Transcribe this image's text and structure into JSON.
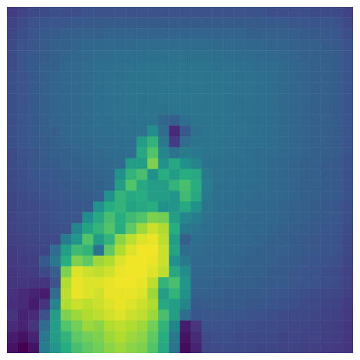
{
  "chart_data": {
    "type": "heatmap",
    "color": "viridis",
    "tick_labels": false,
    "grid": false,
    "xlim": [
      0,
      32
    ],
    "ylim": [
      0,
      32
    ],
    "zlim": [
      0,
      100
    ],
    "cells": [
      [
        18,
        20,
        22,
        23,
        24,
        24,
        24,
        25,
        25,
        25,
        25,
        25,
        25,
        25,
        25,
        25,
        25,
        25,
        25,
        25,
        25,
        25,
        25,
        25,
        24,
        24,
        24,
        24,
        23,
        23,
        22,
        20
      ],
      [
        20,
        23,
        25,
        26,
        27,
        27,
        28,
        28,
        28,
        29,
        29,
        29,
        29,
        29,
        29,
        29,
        29,
        29,
        29,
        29,
        29,
        29,
        29,
        28,
        28,
        28,
        27,
        27,
        26,
        26,
        25,
        22
      ],
      [
        21,
        24,
        26,
        28,
        29,
        30,
        30,
        31,
        31,
        32,
        32,
        32,
        32,
        32,
        32,
        32,
        32,
        32,
        32,
        32,
        32,
        32,
        31,
        31,
        30,
        30,
        30,
        29,
        28,
        28,
        27,
        24
      ],
      [
        22,
        25,
        27,
        29,
        30,
        31,
        32,
        33,
        33,
        34,
        34,
        34,
        35,
        35,
        35,
        35,
        35,
        35,
        35,
        34,
        34,
        34,
        33,
        33,
        32,
        32,
        31,
        30,
        30,
        29,
        28,
        25
      ],
      [
        23,
        26,
        28,
        29,
        31,
        32,
        33,
        34,
        35,
        35,
        36,
        36,
        36,
        37,
        37,
        37,
        37,
        37,
        37,
        36,
        36,
        35,
        35,
        34,
        34,
        33,
        32,
        31,
        31,
        30,
        29,
        26
      ],
      [
        23,
        26,
        28,
        30,
        31,
        33,
        34,
        35,
        36,
        36,
        37,
        37,
        38,
        38,
        38,
        38,
        38,
        38,
        38,
        37,
        37,
        37,
        36,
        35,
        35,
        34,
        33,
        32,
        31,
        30,
        29,
        26
      ],
      [
        24,
        26,
        28,
        30,
        32,
        33,
        34,
        35,
        36,
        37,
        37,
        38,
        38,
        38,
        39,
        39,
        39,
        39,
        38,
        38,
        38,
        37,
        37,
        36,
        35,
        34,
        33,
        32,
        31,
        30,
        29,
        26
      ],
      [
        24,
        26,
        28,
        30,
        32,
        33,
        34,
        35,
        36,
        37,
        37,
        38,
        38,
        38,
        39,
        39,
        39,
        39,
        38,
        38,
        38,
        37,
        37,
        36,
        35,
        34,
        33,
        32,
        31,
        30,
        29,
        26
      ],
      [
        24,
        26,
        28,
        30,
        32,
        33,
        34,
        35,
        36,
        37,
        37,
        38,
        38,
        38,
        39,
        39,
        39,
        39,
        38,
        38,
        38,
        37,
        37,
        36,
        35,
        34,
        33,
        32,
        31,
        30,
        29,
        26
      ],
      [
        24,
        26,
        28,
        30,
        32,
        33,
        34,
        35,
        36,
        37,
        37,
        38,
        38,
        38,
        38,
        39,
        39,
        39,
        38,
        38,
        38,
        37,
        37,
        36,
        35,
        34,
        33,
        32,
        31,
        30,
        29,
        26
      ],
      [
        24,
        26,
        28,
        30,
        32,
        33,
        34,
        35,
        36,
        36,
        37,
        37,
        38,
        38,
        33,
        30,
        36,
        38,
        38,
        38,
        38,
        37,
        37,
        36,
        35,
        34,
        33,
        32,
        31,
        30,
        29,
        26
      ],
      [
        24,
        26,
        28,
        30,
        31,
        33,
        34,
        35,
        35,
        36,
        36,
        37,
        37,
        48,
        35,
        12,
        28,
        37,
        38,
        38,
        38,
        37,
        37,
        36,
        35,
        34,
        33,
        32,
        31,
        30,
        29,
        26
      ],
      [
        24,
        26,
        28,
        29,
        31,
        32,
        33,
        34,
        35,
        35,
        36,
        36,
        55,
        65,
        40,
        18,
        35,
        38,
        38,
        38,
        37,
        37,
        36,
        36,
        35,
        34,
        33,
        32,
        31,
        30,
        29,
        26
      ],
      [
        23,
        25,
        27,
        29,
        30,
        31,
        32,
        33,
        34,
        35,
        35,
        36,
        60,
        72,
        45,
        38,
        42,
        40,
        38,
        38,
        37,
        37,
        36,
        35,
        35,
        34,
        33,
        32,
        31,
        30,
        29,
        26
      ],
      [
        23,
        25,
        27,
        28,
        29,
        30,
        31,
        32,
        33,
        34,
        35,
        55,
        55,
        80,
        50,
        60,
        50,
        45,
        38,
        37,
        37,
        36,
        36,
        35,
        34,
        33,
        32,
        31,
        30,
        29,
        28,
        25
      ],
      [
        22,
        24,
        26,
        27,
        28,
        29,
        30,
        31,
        32,
        33,
        50,
        65,
        70,
        50,
        62,
        55,
        62,
        60,
        40,
        37,
        37,
        36,
        36,
        35,
        34,
        33,
        32,
        31,
        30,
        29,
        28,
        25
      ],
      [
        22,
        24,
        25,
        26,
        27,
        28,
        29,
        30,
        31,
        33,
        55,
        72,
        60,
        55,
        55,
        65,
        70,
        62,
        42,
        37,
        36,
        36,
        35,
        35,
        34,
        33,
        32,
        31,
        30,
        29,
        28,
        25
      ],
      [
        21,
        23,
        24,
        25,
        26,
        27,
        28,
        29,
        30,
        50,
        65,
        60,
        62,
        55,
        55,
        52,
        68,
        60,
        40,
        36,
        36,
        35,
        35,
        34,
        34,
        33,
        32,
        31,
        30,
        29,
        28,
        25
      ],
      [
        21,
        22,
        23,
        24,
        25,
        26,
        27,
        28,
        50,
        62,
        65,
        58,
        60,
        62,
        50,
        52,
        60,
        50,
        38,
        36,
        35,
        35,
        34,
        34,
        33,
        32,
        31,
        30,
        29,
        28,
        27,
        24
      ],
      [
        20,
        22,
        23,
        24,
        25,
        26,
        27,
        48,
        60,
        70,
        62,
        68,
        72,
        80,
        78,
        55,
        45,
        42,
        37,
        35,
        35,
        34,
        34,
        33,
        33,
        32,
        31,
        30,
        29,
        28,
        27,
        24
      ],
      [
        20,
        21,
        22,
        23,
        24,
        25,
        45,
        58,
        65,
        72,
        62,
        75,
        85,
        92,
        88,
        62,
        40,
        38,
        36,
        35,
        34,
        34,
        33,
        33,
        32,
        31,
        30,
        29,
        28,
        27,
        26,
        23
      ],
      [
        19,
        20,
        21,
        22,
        23,
        42,
        52,
        72,
        55,
        65,
        82,
        90,
        95,
        97,
        90,
        55,
        30,
        36,
        35,
        34,
        34,
        33,
        33,
        32,
        31,
        30,
        29,
        28,
        27,
        26,
        25,
        22
      ],
      [
        18,
        19,
        20,
        21,
        35,
        55,
        68,
        65,
        38,
        75,
        88,
        95,
        98,
        98,
        92,
        58,
        35,
        35,
        34,
        34,
        33,
        33,
        32,
        31,
        30,
        30,
        29,
        28,
        27,
        26,
        25,
        22
      ],
      [
        17,
        18,
        19,
        28,
        40,
        62,
        80,
        75,
        85,
        88,
        95,
        98,
        98,
        97,
        92,
        50,
        40,
        34,
        34,
        33,
        33,
        32,
        31,
        31,
        30,
        29,
        28,
        27,
        26,
        25,
        24,
        21
      ],
      [
        16,
        17,
        18,
        22,
        30,
        80,
        95,
        92,
        90,
        93,
        97,
        98,
        98,
        95,
        90,
        60,
        48,
        33,
        33,
        32,
        32,
        31,
        31,
        30,
        29,
        28,
        27,
        26,
        25,
        24,
        23,
        20
      ],
      [
        15,
        16,
        15,
        15,
        25,
        88,
        97,
        95,
        95,
        97,
        98,
        98,
        97,
        90,
        65,
        70,
        52,
        32,
        32,
        31,
        31,
        30,
        30,
        29,
        28,
        28,
        27,
        26,
        25,
        24,
        23,
        20
      ],
      [
        14,
        12,
        10,
        8,
        35,
        90,
        97,
        95,
        93,
        97,
        97,
        97,
        95,
        85,
        55,
        65,
        50,
        31,
        30,
        30,
        29,
        29,
        28,
        28,
        27,
        26,
        25,
        24,
        23,
        22,
        21,
        19
      ],
      [
        13,
        12,
        8,
        15,
        45,
        88,
        92,
        90,
        92,
        95,
        97,
        95,
        92,
        88,
        60,
        55,
        45,
        28,
        29,
        29,
        28,
        28,
        27,
        27,
        26,
        25,
        24,
        23,
        22,
        21,
        20,
        18
      ],
      [
        15,
        10,
        12,
        25,
        55,
        80,
        85,
        88,
        90,
        93,
        95,
        92,
        90,
        85,
        70,
        55,
        35,
        26,
        27,
        27,
        26,
        26,
        25,
        25,
        24,
        23,
        22,
        22,
        21,
        20,
        19,
        17
      ],
      [
        12,
        10,
        15,
        35,
        55,
        72,
        78,
        85,
        82,
        88,
        90,
        88,
        85,
        78,
        65,
        45,
        8,
        15,
        25,
        25,
        25,
        24,
        24,
        23,
        23,
        22,
        21,
        21,
        20,
        19,
        18,
        16
      ],
      [
        8,
        5,
        10,
        40,
        55,
        65,
        75,
        78,
        80,
        85,
        88,
        85,
        82,
        75,
        62,
        40,
        5,
        12,
        23,
        24,
        24,
        23,
        23,
        22,
        22,
        21,
        21,
        20,
        20,
        19,
        18,
        16
      ],
      [
        5,
        0,
        5,
        42,
        52,
        62,
        70,
        75,
        78,
        82,
        85,
        82,
        80,
        72,
        60,
        38,
        3,
        10,
        22,
        23,
        23,
        22,
        22,
        21,
        21,
        20,
        20,
        19,
        19,
        18,
        17,
        15
      ]
    ]
  }
}
